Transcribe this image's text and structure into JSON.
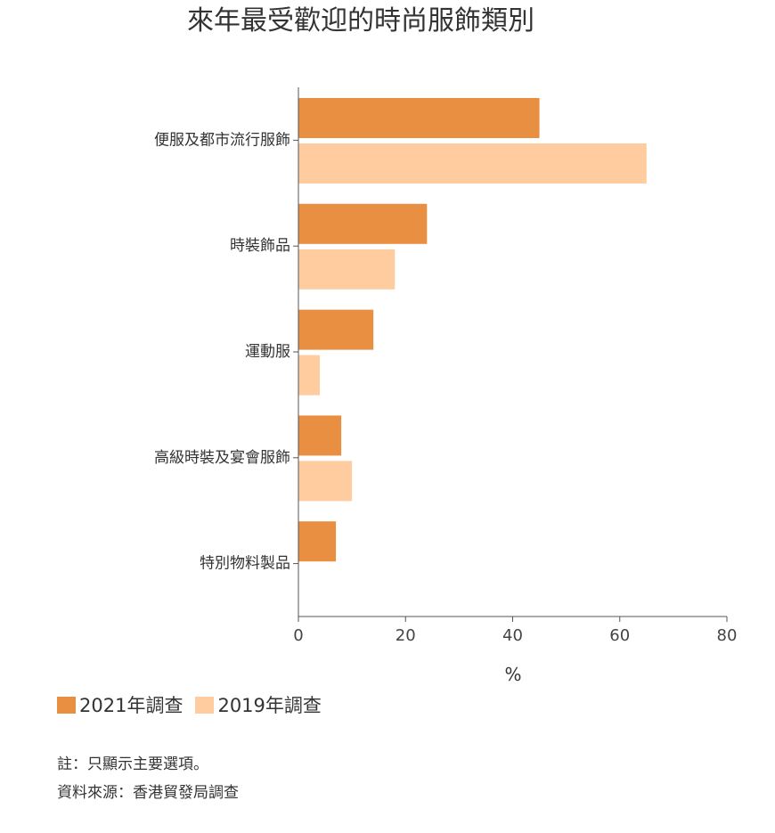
{
  "colors": {
    "series_2021": "#E98F42",
    "series_2019": "#FFCC9F",
    "axis": "#555555"
  },
  "chart_data": {
    "type": "bar",
    "orientation": "horizontal",
    "title": "來年最受歡迎的時尚服飾類別",
    "xlabel": "%",
    "ylabel": "",
    "xlim": [
      0,
      80
    ],
    "xticks": [
      0,
      20,
      40,
      60,
      80
    ],
    "categories": [
      "便服及都市流行服飾",
      "時裝飾品",
      "運動服",
      "高級時裝及宴會服飾",
      "特別物料製品"
    ],
    "series": [
      {
        "name": "2021年調查",
        "values": [
          45,
          24,
          14,
          8,
          7
        ]
      },
      {
        "name": "2019年調查",
        "values": [
          65,
          18,
          4,
          10,
          0
        ]
      }
    ],
    "legend_position": "bottom-left"
  },
  "notes": {
    "note": "註：只顯示主要選項。",
    "source": "資料來源：香港貿發局調查"
  }
}
